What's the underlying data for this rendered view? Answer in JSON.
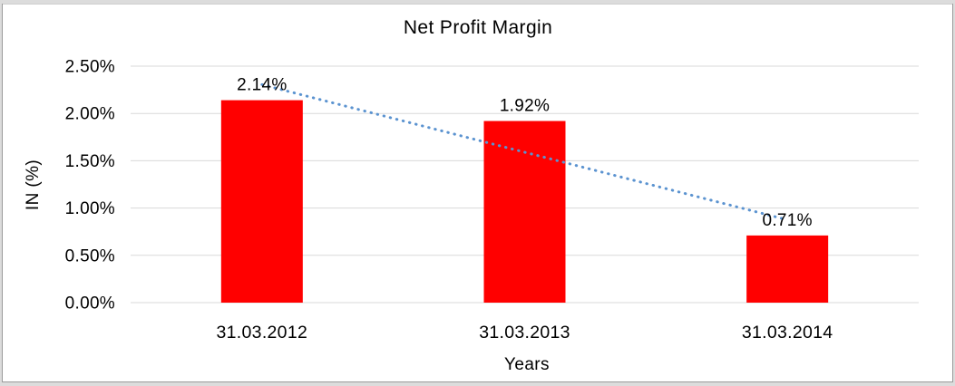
{
  "frame": {
    "band_color": "#dcdcdc",
    "edge_color": "#9a9a9a",
    "background": "#ffffff"
  },
  "chart_data": {
    "type": "bar",
    "title": "Net Profit Margin",
    "xlabel": "Years",
    "ylabel": "IN (%)",
    "categories": [
      "31.03.2012",
      "31.03.2013",
      "31.03.2014"
    ],
    "series": [
      {
        "name": "Net Profit Margin",
        "values": [
          2.14,
          1.92,
          0.71
        ]
      }
    ],
    "data_labels": [
      "2.14%",
      "1.92%",
      "0.71%"
    ],
    "y_tick_values": [
      0,
      0.5,
      1.0,
      1.5,
      2.0,
      2.5
    ],
    "y_tick_labels": [
      "0.00%",
      "0.50%",
      "1.00%",
      "1.50%",
      "2.00%",
      "2.50%"
    ],
    "ylim": [
      0,
      2.5
    ],
    "grid": true,
    "legend": "none",
    "bar_color": "#ff0000",
    "grid_color": "#d9d9d9",
    "text_color": "#000000",
    "trendline": {
      "type": "linear",
      "style": "dotted",
      "color": "#5b93d0"
    }
  }
}
